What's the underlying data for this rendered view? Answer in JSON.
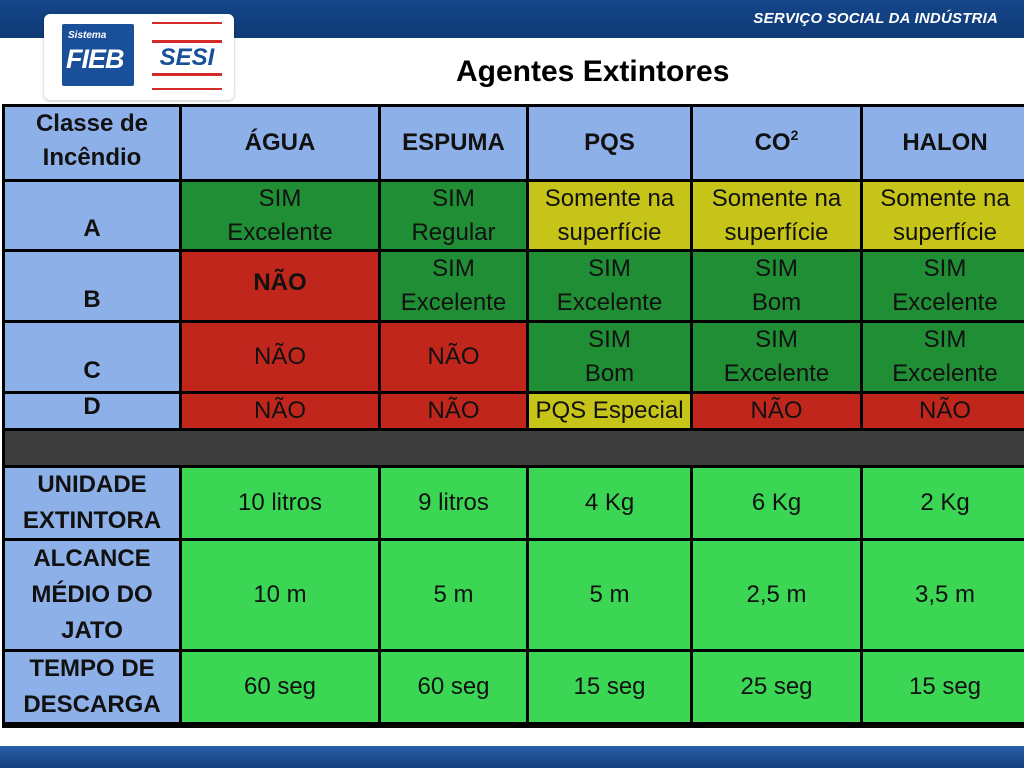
{
  "header": {
    "org_name": "SERVIÇO SOCIAL DA INDÚSTRIA",
    "logo_small": "Sistema",
    "logo_fieb": "FIEB",
    "logo_sesi": "SESI",
    "title": "Agentes Extintores"
  },
  "table": {
    "corner": [
      "Classe de",
      "Incêndio"
    ],
    "columns": [
      "ÁGUA",
      "ESPUMA",
      "PQS",
      "CO",
      "HALON"
    ],
    "co_sup": "2",
    "colors": {
      "header": "#8db0e8",
      "green_dark": "#1f8e35",
      "red": "#c0261c",
      "yellow": "#c6c418",
      "green_bright": "#3ad654"
    },
    "class_a": {
      "label": "A",
      "agua": [
        "SIM",
        "Excelente"
      ],
      "espuma": [
        "SIM",
        "Regular"
      ],
      "pqs": [
        "Somente na",
        "superfície"
      ],
      "co2": [
        "Somente na",
        "superfície"
      ],
      "halon": [
        "Somente na",
        "superfície"
      ]
    },
    "class_b": {
      "label": "B",
      "agua": "NÃO",
      "espuma": [
        "SIM",
        "Excelente"
      ],
      "pqs": [
        "SIM",
        "Excelente"
      ],
      "co2": [
        "SIM",
        "Bom"
      ],
      "halon": [
        "SIM",
        "Excelente"
      ]
    },
    "class_c": {
      "label": "C",
      "agua": "NÃO",
      "espuma": "NÃO",
      "pqs": [
        "SIM",
        "Bom"
      ],
      "co2": [
        "SIM",
        "Excelente"
      ],
      "halon": [
        "SIM",
        "Excelente"
      ]
    },
    "class_d": {
      "label": "D",
      "agua": "NÃO",
      "espuma": "NÃO",
      "pqs": "PQS Especial",
      "co2": "NÃO",
      "halon": "NÃO"
    },
    "unidade": {
      "label": [
        "UNIDADE",
        "EXTINTORA"
      ],
      "values": [
        "10 litros",
        "9 litros",
        "4 Kg",
        "6 Kg",
        "2 Kg"
      ]
    },
    "alcance": {
      "label": [
        "ALCANCE",
        "MÉDIO DO",
        "JATO"
      ],
      "values": [
        "10 m",
        "5 m",
        "5 m",
        "2,5 m",
        "3,5 m"
      ]
    },
    "tempo": {
      "label": [
        "TEMPO DE",
        "DESCARGA"
      ],
      "values": [
        "60 seg",
        "60 seg",
        "15 seg",
        "25 seg",
        "15 seg"
      ]
    }
  }
}
